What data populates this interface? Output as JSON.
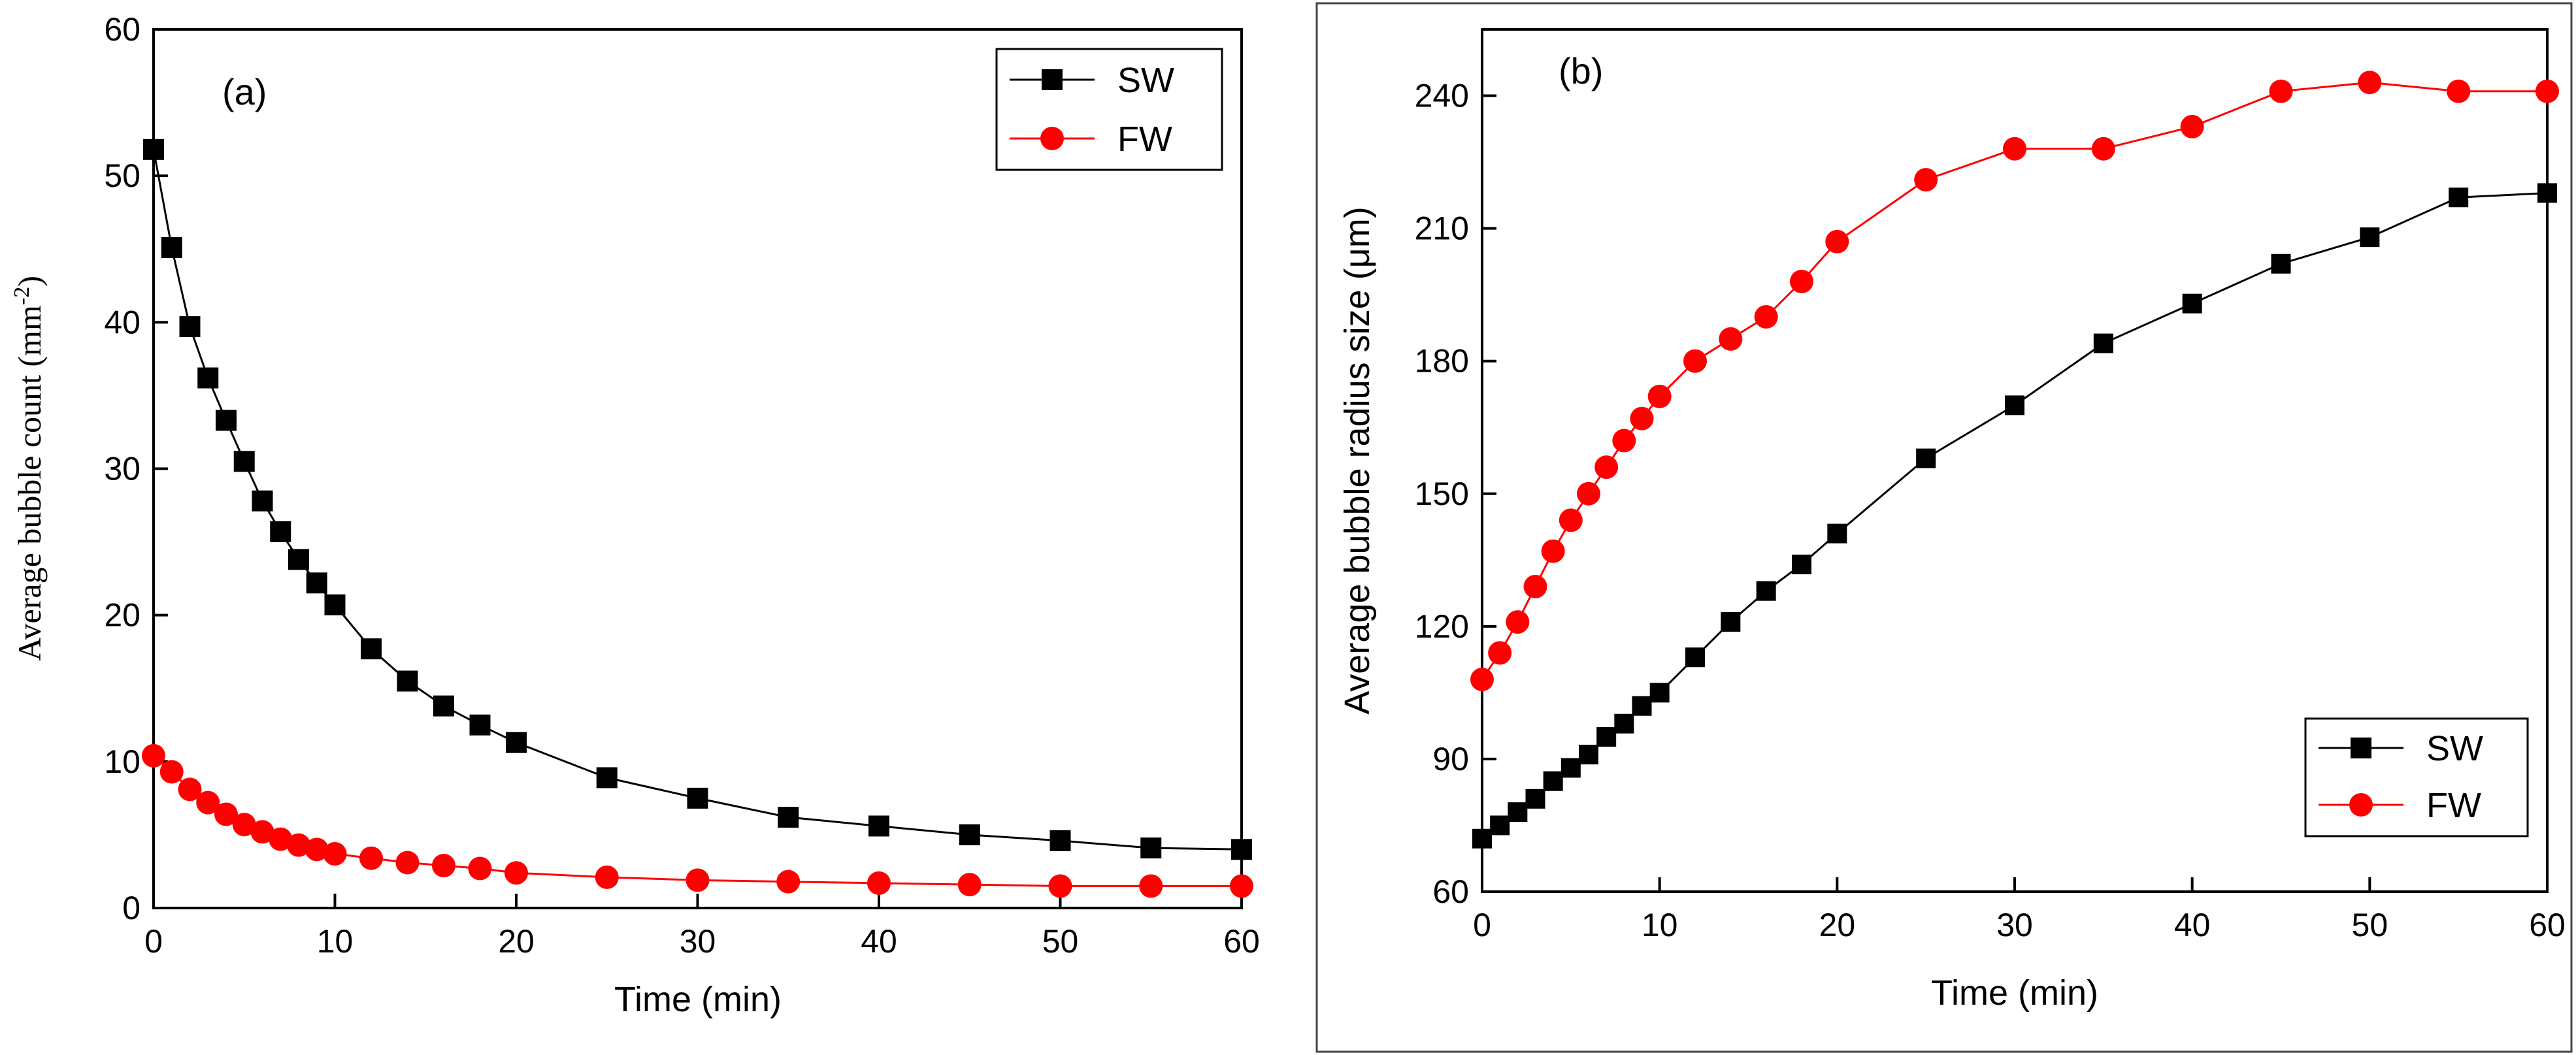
{
  "chart_data": [
    {
      "type": "line",
      "panel_label": "(a)",
      "xlabel": "Time (min)",
      "ylabel": "Average bubble count (mm",
      "ylabel_sup": "-2",
      "ylabel_close": ")",
      "xlim": [
        0,
        60
      ],
      "ylim": [
        0,
        60
      ],
      "xticks": [
        "0",
        "10",
        "20",
        "30",
        "40",
        "50",
        "60"
      ],
      "yticks": [
        "0",
        "10",
        "20",
        "30",
        "40",
        "50",
        "60"
      ],
      "grid": false,
      "legend_position": "top-right",
      "series": [
        {
          "name": "SW",
          "color": "#000000",
          "marker": "square",
          "x": [
            0,
            1,
            2,
            3,
            4,
            5,
            6,
            7,
            8,
            9,
            10,
            12,
            14,
            16,
            18,
            20,
            25,
            30,
            35,
            40,
            45,
            50,
            55,
            60
          ],
          "y": [
            51.8,
            45.1,
            39.7,
            36.2,
            33.3,
            30.5,
            27.8,
            25.7,
            23.8,
            22.2,
            20.7,
            17.7,
            15.5,
            13.8,
            12.5,
            11.3,
            8.9,
            7.5,
            6.2,
            5.6,
            5.0,
            4.6,
            4.1,
            4.0
          ]
        },
        {
          "name": "FW",
          "color": "#ff0000",
          "marker": "circle",
          "x": [
            0,
            1,
            2,
            3,
            4,
            5,
            6,
            7,
            8,
            9,
            10,
            12,
            14,
            16,
            18,
            20,
            25,
            30,
            35,
            40,
            45,
            50,
            55,
            60
          ],
          "y": [
            10.4,
            9.3,
            8.1,
            7.2,
            6.4,
            5.7,
            5.2,
            4.7,
            4.3,
            4.0,
            3.7,
            3.4,
            3.1,
            2.9,
            2.7,
            2.4,
            2.1,
            1.9,
            1.8,
            1.7,
            1.6,
            1.5,
            1.5,
            1.5
          ]
        }
      ]
    },
    {
      "type": "line",
      "panel_label": "(b)",
      "xlabel": "Time (min)",
      "ylabel": "Average bubble radius size (μm)",
      "xlim": [
        0,
        60
      ],
      "ylim": [
        60,
        255
      ],
      "xticks": [
        "0",
        "10",
        "20",
        "30",
        "40",
        "50",
        "60"
      ],
      "yticks": [
        "60",
        "90",
        "120",
        "150",
        "180",
        "210",
        "240"
      ],
      "grid": false,
      "legend_position": "bottom-right",
      "series": [
        {
          "name": "SW",
          "color": "#000000",
          "marker": "square",
          "x": [
            0,
            1,
            2,
            3,
            4,
            5,
            6,
            7,
            8,
            9,
            10,
            12,
            14,
            16,
            18,
            20,
            25,
            30,
            35,
            40,
            45,
            50,
            55,
            60
          ],
          "y": [
            72,
            75,
            78,
            81,
            85,
            88,
            91,
            95,
            98,
            102,
            105,
            113,
            121,
            128,
            134,
            141,
            158,
            170,
            184,
            193,
            202,
            208,
            217,
            218
          ]
        },
        {
          "name": "FW",
          "color": "#ff0000",
          "marker": "circle",
          "x": [
            0,
            1,
            2,
            3,
            4,
            5,
            6,
            7,
            8,
            9,
            10,
            12,
            14,
            16,
            18,
            20,
            25,
            30,
            35,
            40,
            45,
            50,
            55,
            60
          ],
          "y": [
            108,
            114,
            121,
            129,
            137,
            144,
            150,
            156,
            162,
            167,
            172,
            180,
            185,
            190,
            198,
            207,
            221,
            228,
            228,
            233,
            241,
            243,
            241,
            241
          ]
        }
      ]
    }
  ]
}
